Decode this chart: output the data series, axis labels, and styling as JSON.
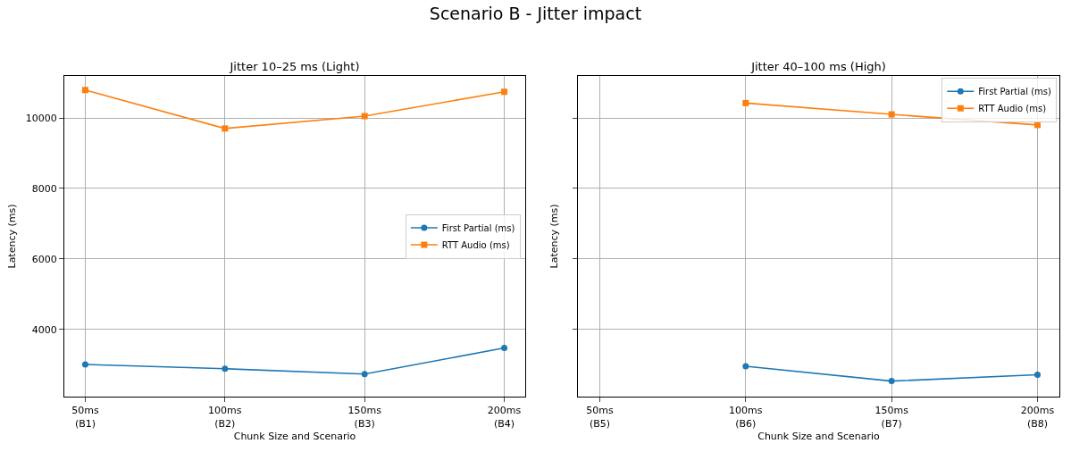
{
  "chart_data": [
    {
      "type": "line",
      "title": "Jitter 10–25 ms (Light)",
      "annotations": [
        "Scenario B - Jitter impact"
      ],
      "xlabel": "Chunk Size and Scenario",
      "ylabel": "Latency (ms)",
      "categories": [
        "50ms\n(B1)",
        "100ms\n(B2)",
        "150ms\n(B3)",
        "200ms\n(B4)"
      ],
      "series": [
        {
          "name": "First Partial (ms)",
          "color": "#1f77b4",
          "marker": "circle",
          "values": [
            3010,
            2890,
            2740,
            3480
          ]
        },
        {
          "name": "RTT Audio (ms)",
          "color": "#ff7f0e",
          "marker": "square",
          "values": [
            10790,
            9700,
            10050,
            10740
          ]
        }
      ],
      "ylim": [
        2100,
        11190
      ],
      "yticks": [
        4000,
        6000,
        8000,
        10000
      ],
      "grid": true,
      "legend": "right"
    },
    {
      "type": "line",
      "title": "Jitter 40–100 ms (High)",
      "xlabel": "Chunk Size and Scenario",
      "ylabel": "Latency (ms)",
      "categories": [
        "50ms\n(B5)",
        "100ms\n(B6)",
        "150ms\n(B7)",
        "200ms\n(B8)"
      ],
      "series": [
        {
          "name": "First Partial (ms)",
          "color": "#1f77b4",
          "marker": "circle",
          "values": [
            null,
            2960,
            2540,
            2720
          ]
        },
        {
          "name": "RTT Audio (ms)",
          "color": "#ff7f0e",
          "marker": "square",
          "values": [
            null,
            10420,
            10100,
            9800
          ]
        }
      ],
      "ylim": [
        2100,
        11190
      ],
      "yticks": [
        4000,
        6000,
        8000,
        10000
      ],
      "grid": true,
      "legend": "top right",
      "tick_labels": "x"
    }
  ]
}
